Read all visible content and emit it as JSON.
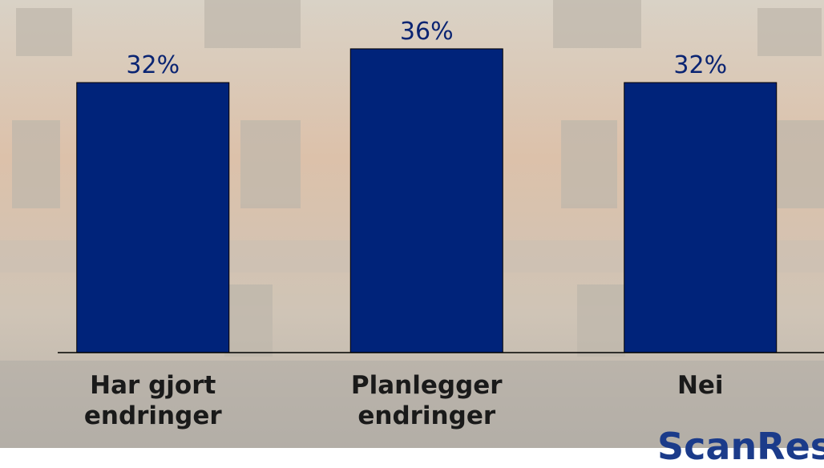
{
  "chart_data": {
    "type": "bar",
    "categories": [
      "Har gjort endringer",
      "Planlegger endringer",
      "Nei"
    ],
    "values": [
      32,
      36,
      32
    ],
    "value_labels": [
      "32%",
      "36%",
      "32%"
    ],
    "color": "#00237a"
  },
  "logo": "ScanRes"
}
